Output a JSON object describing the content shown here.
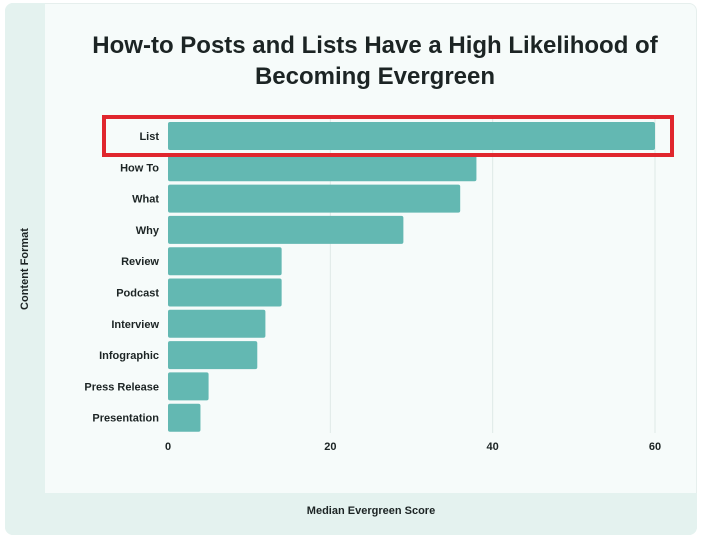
{
  "chart_data": {
    "type": "bar",
    "orientation": "horizontal",
    "title": "How-to Posts and Lists Have a High Likelihood of Becoming Evergreen",
    "xlabel": "Median Evergreen Score",
    "ylabel": "Content Format",
    "categories": [
      "List",
      "How To",
      "What",
      "Why",
      "Review",
      "Podcast",
      "Interview",
      "Infographic",
      "Press Release",
      "Presentation"
    ],
    "values": [
      60,
      38,
      36,
      29,
      14,
      14,
      12,
      11,
      5,
      4
    ],
    "xlim": [
      0,
      63
    ],
    "xticks": [
      0,
      20,
      40,
      60
    ],
    "grid": true,
    "highlight": "List",
    "colors": {
      "bar": "#63b8b2",
      "highlight_box": "#e0262d",
      "grid": "#dfe9e7"
    }
  }
}
